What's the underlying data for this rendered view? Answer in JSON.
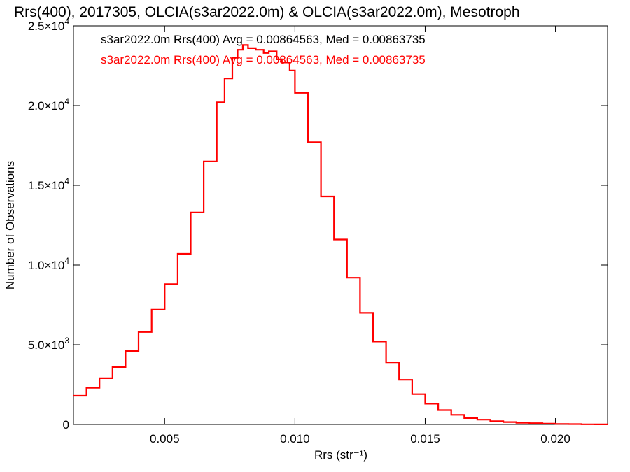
{
  "chart_data": {
    "type": "line",
    "title": "Rrs(400), 2017305, OLCIA(s3ar2022.0m) & OLCIA(s3ar2022.0m), Mesotroph",
    "xlabel": "Rrs (str⁻¹)",
    "ylabel": "Number of Observations",
    "xlim": [
      0.0015,
      0.022
    ],
    "ylim": [
      0,
      25000
    ],
    "x_ticks": [
      0.005,
      0.01,
      0.015,
      0.02
    ],
    "x_tick_labels": [
      "0.005",
      "0.010",
      "0.015",
      "0.020"
    ],
    "y_ticks": [
      0,
      5000,
      10000,
      15000,
      20000,
      25000
    ],
    "y_tick_labels": [
      {
        "mantissa": "0",
        "exponent": ""
      },
      {
        "mantissa": "5.0×10",
        "exponent": "3"
      },
      {
        "mantissa": "1.0×10",
        "exponent": "4"
      },
      {
        "mantissa": "1.5×10",
        "exponent": "4"
      },
      {
        "mantissa": "2.0×10",
        "exponent": "4"
      },
      {
        "mantissa": "2.5×10",
        "exponent": "4"
      }
    ],
    "grid": false,
    "step": true,
    "legend": [
      {
        "label": "s3ar2022.0m Rrs(400) Avg = 0.00864563, Med = 0.00863735",
        "color": "#000000"
      },
      {
        "label": "s3ar2022.0m Rrs(400) Avg = 0.00864563, Med = 0.00863735",
        "color": "#ff0000"
      }
    ],
    "legend_position": "top-left",
    "series": [
      {
        "color": "#ff0000",
        "x": [
          0.0015,
          0.002,
          0.0025,
          0.003,
          0.0035,
          0.004,
          0.0045,
          0.005,
          0.0055,
          0.006,
          0.0065,
          0.007,
          0.0073,
          0.0076,
          0.0078,
          0.008,
          0.0082,
          0.0085,
          0.0088,
          0.009,
          0.0093,
          0.0095,
          0.0098,
          0.01,
          0.0105,
          0.011,
          0.0115,
          0.012,
          0.0125,
          0.013,
          0.0135,
          0.014,
          0.0145,
          0.015,
          0.0155,
          0.016,
          0.0165,
          0.017,
          0.0175,
          0.018,
          0.0185,
          0.019,
          0.0195,
          0.02,
          0.0205,
          0.021,
          0.0215,
          0.022
        ],
        "values": [
          1800,
          2300,
          2900,
          3600,
          4600,
          5800,
          7200,
          8800,
          10700,
          13300,
          16500,
          20200,
          21700,
          23000,
          23500,
          23800,
          23600,
          23500,
          23300,
          23400,
          22900,
          22700,
          22200,
          20800,
          17700,
          14300,
          11600,
          9200,
          7000,
          5200,
          3900,
          2800,
          1900,
          1300,
          900,
          600,
          400,
          300,
          200,
          150,
          100,
          80,
          50,
          30,
          20,
          10,
          5,
          0
        ]
      }
    ]
  }
}
